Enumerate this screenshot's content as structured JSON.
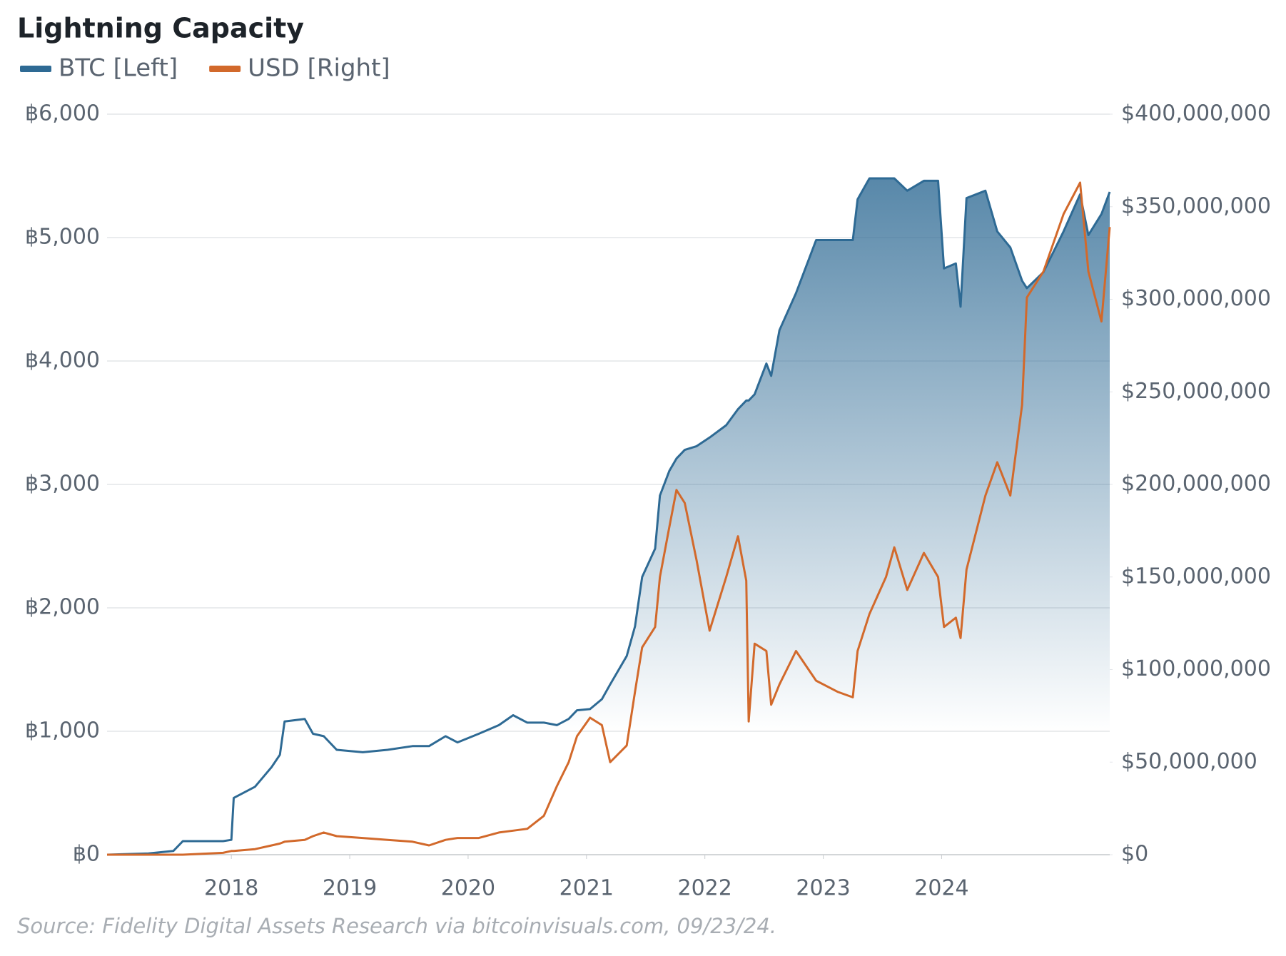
{
  "chart_data": {
    "type": "line",
    "title": "Lightning Capacity",
    "source": "Source: Fidelity Digital Assets Research via bitcoinvisuals.com, 09/23/24.",
    "x": [
      2016.95,
      2017.3,
      2017.51,
      2017.59,
      2017.93,
      2018.0,
      2018.02,
      2018.2,
      2018.34,
      2018.41,
      2018.45,
      2018.62,
      2018.69,
      2018.78,
      2018.89,
      2019.11,
      2019.32,
      2019.53,
      2019.67,
      2019.81,
      2019.91,
      2020.09,
      2020.26,
      2020.38,
      2020.5,
      2020.64,
      2020.75,
      2020.85,
      2020.92,
      2021.03,
      2021.13,
      2021.2,
      2021.34,
      2021.41,
      2021.47,
      2021.58,
      2021.62,
      2021.7,
      2021.76,
      2021.83,
      2021.93,
      2022.04,
      2022.18,
      2022.28,
      2022.35,
      2022.37,
      2022.42,
      2022.52,
      2022.56,
      2022.63,
      2022.77,
      2022.94,
      2023.12,
      2023.25,
      2023.29,
      2023.39,
      2023.53,
      2023.6,
      2023.71,
      2023.85,
      2023.97,
      2024.02,
      2024.12,
      2024.16,
      2024.21,
      2024.37,
      2024.47,
      2024.58,
      2024.68,
      2024.72,
      2024.86,
      2025.03,
      2025.17,
      2025.24,
      2025.35,
      2025.42
    ],
    "xlim": [
      2016.95,
      2025.42
    ],
    "xticks": [
      2018,
      2019,
      2020,
      2021,
      2022,
      2023,
      2024
    ],
    "ylim": [
      0,
      6000
    ],
    "yticks": [
      {
        "value": 0,
        "label": "฿0"
      },
      {
        "value": 1000,
        "label": "฿1,000"
      },
      {
        "value": 2000,
        "label": "฿2,000"
      },
      {
        "value": 3000,
        "label": "฿3,000"
      },
      {
        "value": 4000,
        "label": "฿4,000"
      },
      {
        "value": 5000,
        "label": "฿5,000"
      },
      {
        "value": 6000,
        "label": "฿6,000"
      }
    ],
    "y2lim": [
      0,
      400000000
    ],
    "y2ticks": [
      {
        "value": 0,
        "label": "$0"
      },
      {
        "value": 50000000,
        "label": "$50,000,000"
      },
      {
        "value": 100000000,
        "label": "$100,000,000"
      },
      {
        "value": 150000000,
        "label": "$150,000,000"
      },
      {
        "value": 200000000,
        "label": "$200,000,000"
      },
      {
        "value": 250000000,
        "label": "$250,000,000"
      },
      {
        "value": 300000000,
        "label": "$300,000,000"
      },
      {
        "value": 350000000,
        "label": "$350,000,000"
      },
      {
        "value": 400000000,
        "label": "$400,000,000"
      }
    ],
    "grid": true,
    "series": [
      {
        "name": "BTC [Left]",
        "color": "#2e6a94",
        "area": true,
        "values": [
          0,
          10,
          30,
          110,
          110,
          120,
          460,
          550,
          710,
          810,
          1080,
          1100,
          980,
          960,
          850,
          830,
          850,
          880,
          880,
          960,
          910,
          980,
          1050,
          1130,
          1070,
          1070,
          1050,
          1100,
          1170,
          1180,
          1260,
          1380,
          1610,
          1850,
          2250,
          2480,
          2910,
          3110,
          3210,
          3280,
          3310,
          3380,
          3480,
          3610,
          3680,
          3680,
          3730,
          3980,
          3880,
          4250,
          4550,
          4980,
          4980,
          4980,
          5310,
          5480,
          5480,
          5480,
          5380,
          5460,
          5460,
          4750,
          4790,
          4440,
          5320,
          5380,
          5050,
          4920,
          4650,
          4590,
          4720,
          5050,
          5350,
          5020,
          5190,
          5370
        ]
      },
      {
        "name": "USD [Right]",
        "color": "#d2692b",
        "axis": "y2",
        "values": [
          0,
          0,
          0,
          0,
          1000000,
          2000000,
          2000000,
          3000000,
          5000000,
          6000000,
          7000000,
          8000000,
          10000000,
          12000000,
          10000000,
          9000000,
          8000000,
          7000000,
          5000000,
          8000000,
          9000000,
          9000000,
          12000000,
          13000000,
          14000000,
          21000000,
          37000000,
          50000000,
          64000000,
          74000000,
          70000000,
          50000000,
          59000000,
          88000000,
          112000000,
          123000000,
          150000000,
          177000000,
          197000000,
          190000000,
          159000000,
          121000000,
          150000000,
          172000000,
          148000000,
          72000000,
          114000000,
          110000000,
          81000000,
          92000000,
          110000000,
          94000000,
          88000000,
          85000000,
          110000000,
          130000000,
          150000000,
          166000000,
          143000000,
          163000000,
          150000000,
          123000000,
          128000000,
          117000000,
          154000000,
          194000000,
          212000000,
          194000000,
          243000000,
          301000000,
          315000000,
          346000000,
          363000000,
          315000000,
          288000000,
          339000000
        ]
      }
    ]
  }
}
